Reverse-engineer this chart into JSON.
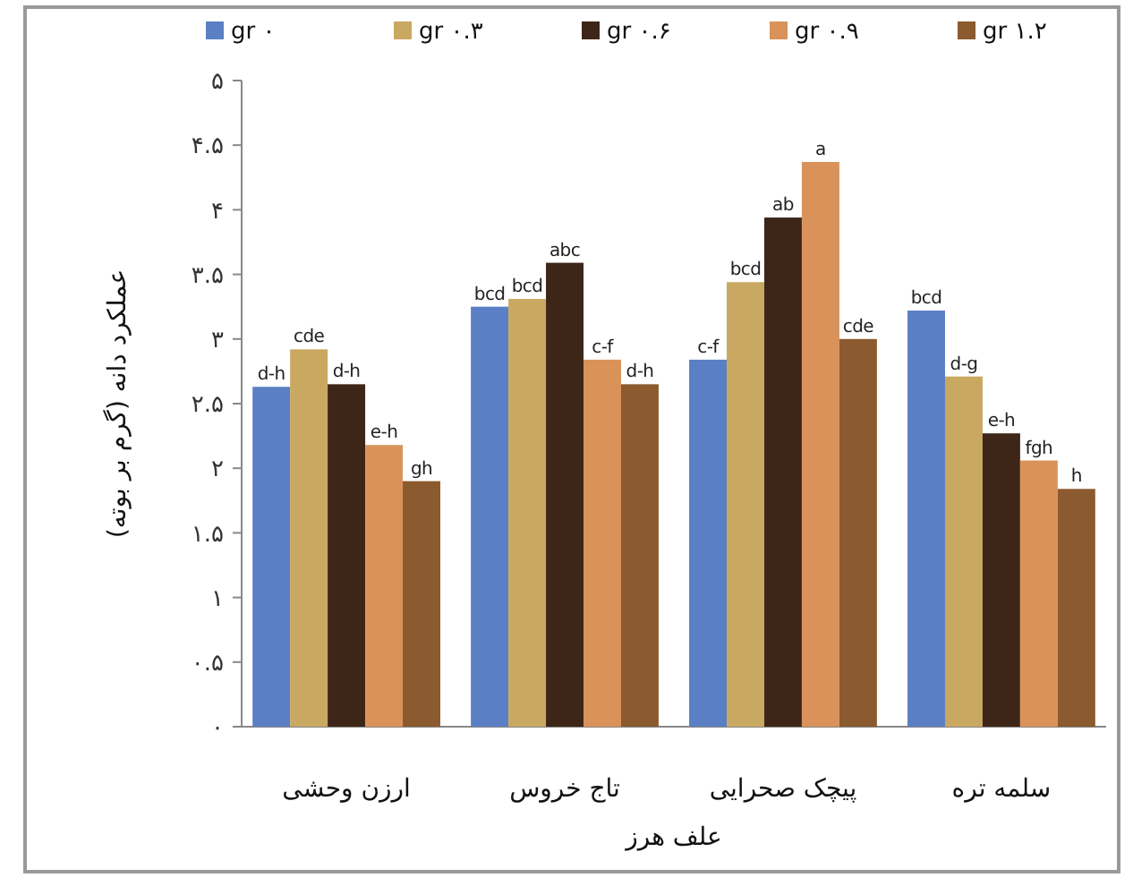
{
  "chart_data": {
    "type": "bar",
    "xlabel": "علف هرز",
    "ylabel": "عملکرد دانه (گرم بر بوته)",
    "categories": [
      "ارزن وحشی",
      "تاج خروس",
      "پیچک صحرایی",
      "سلمه تره"
    ],
    "series": [
      {
        "name": "gr ۰",
        "color": "#5b7fc4",
        "values": [
          2.63,
          3.25,
          2.84,
          3.22
        ],
        "value_labels": [
          "d-h",
          "bcd",
          "c-f",
          "bcd"
        ]
      },
      {
        "name": "gr ۰.۳",
        "color": "#c9a862",
        "values": [
          2.92,
          3.31,
          3.44,
          2.71
        ],
        "value_labels": [
          "cde",
          "bcd",
          "bcd",
          "d-g"
        ]
      },
      {
        "name": "gr ۰.۶",
        "color": "#3d2618",
        "values": [
          2.65,
          3.59,
          3.94,
          2.27
        ],
        "value_labels": [
          "d-h",
          "abc",
          "ab",
          "e-h"
        ]
      },
      {
        "name": "gr ۰.۹",
        "color": "#d9935a",
        "values": [
          2.18,
          2.84,
          4.37,
          2.06
        ],
        "value_labels": [
          "e-h",
          "c-f",
          "a",
          "fgh"
        ]
      },
      {
        "name": "gr ۱.۲",
        "color": "#8b5a2e",
        "values": [
          1.9,
          2.65,
          3.0,
          1.84
        ],
        "value_labels": [
          "gh",
          "d-h",
          "cde",
          "h"
        ]
      }
    ],
    "ylim": [
      0,
      5
    ],
    "yticks": [
      {
        "value": 0,
        "label": "۰"
      },
      {
        "value": 0.5,
        "label": "۰.۵"
      },
      {
        "value": 1,
        "label": "۱"
      },
      {
        "value": 1.5,
        "label": "۱.۵"
      },
      {
        "value": 2,
        "label": "۲"
      },
      {
        "value": 2.5,
        "label": "۲.۵"
      },
      {
        "value": 3,
        "label": "۳"
      },
      {
        "value": 3.5,
        "label": "۳.۵"
      },
      {
        "value": 4,
        "label": "۴"
      },
      {
        "value": 4.5,
        "label": "۴.۵"
      },
      {
        "value": 5,
        "label": "۵"
      }
    ],
    "grid": false,
    "legend": "top"
  }
}
